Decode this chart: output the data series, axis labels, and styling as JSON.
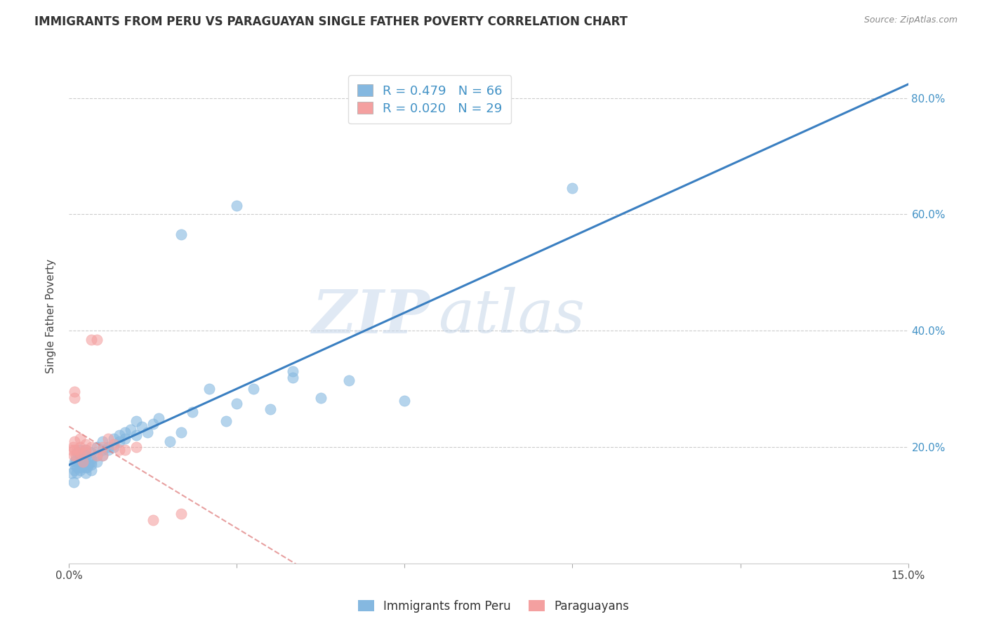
{
  "title": "IMMIGRANTS FROM PERU VS PARAGUAYAN SINGLE FATHER POVERTY CORRELATION CHART",
  "source": "Source: ZipAtlas.com",
  "ylabel": "Single Father Poverty",
  "xlim": [
    0.0,
    0.15
  ],
  "ylim": [
    0.0,
    0.85
  ],
  "xticks": [
    0.0,
    0.03,
    0.06,
    0.09,
    0.12,
    0.15
  ],
  "xticklabels": [
    "0.0%",
    "",
    "",
    "",
    "",
    "15.0%"
  ],
  "yticks_right": [
    0.0,
    0.2,
    0.4,
    0.6,
    0.8
  ],
  "yticklabels_right": [
    "",
    "20.0%",
    "40.0%",
    "60.0%",
    "80.0%"
  ],
  "legend_label1": "Immigrants from Peru",
  "legend_label2": "Paraguayans",
  "R1": 0.479,
  "N1": 66,
  "R2": 0.02,
  "N2": 29,
  "color_blue": "#85b8e0",
  "color_pink": "#f4a0a0",
  "color_blue_line": "#3a7fc1",
  "color_pink_line": "#e08080",
  "watermark_zip": "ZIP",
  "watermark_atlas": "atlas",
  "peru_x": [
    0.0005,
    0.0008,
    0.001,
    0.001,
    0.001,
    0.0012,
    0.0013,
    0.0015,
    0.0015,
    0.0018,
    0.002,
    0.002,
    0.002,
    0.002,
    0.0022,
    0.0025,
    0.0025,
    0.003,
    0.003,
    0.003,
    0.003,
    0.003,
    0.0032,
    0.0035,
    0.004,
    0.004,
    0.004,
    0.004,
    0.004,
    0.005,
    0.005,
    0.005,
    0.006,
    0.006,
    0.006,
    0.007,
    0.007,
    0.008,
    0.008,
    0.009,
    0.009,
    0.01,
    0.01,
    0.011,
    0.012,
    0.012,
    0.013,
    0.014,
    0.015,
    0.016,
    0.018,
    0.02,
    0.022,
    0.025,
    0.028,
    0.03,
    0.033,
    0.036,
    0.04,
    0.045,
    0.05,
    0.06,
    0.02,
    0.03,
    0.04,
    0.09
  ],
  "peru_y": [
    0.155,
    0.14,
    0.16,
    0.17,
    0.175,
    0.18,
    0.155,
    0.19,
    0.165,
    0.17,
    0.16,
    0.175,
    0.185,
    0.195,
    0.165,
    0.17,
    0.18,
    0.155,
    0.165,
    0.175,
    0.185,
    0.195,
    0.165,
    0.17,
    0.16,
    0.17,
    0.18,
    0.19,
    0.175,
    0.185,
    0.2,
    0.175,
    0.195,
    0.21,
    0.185,
    0.2,
    0.195,
    0.215,
    0.2,
    0.22,
    0.21,
    0.225,
    0.215,
    0.23,
    0.245,
    0.22,
    0.235,
    0.225,
    0.24,
    0.25,
    0.21,
    0.225,
    0.26,
    0.3,
    0.245,
    0.275,
    0.3,
    0.265,
    0.32,
    0.285,
    0.315,
    0.28,
    0.565,
    0.615,
    0.33,
    0.645
  ],
  "paraguay_x": [
    0.0005,
    0.0007,
    0.0008,
    0.001,
    0.001,
    0.001,
    0.001,
    0.0012,
    0.0015,
    0.002,
    0.002,
    0.002,
    0.0025,
    0.003,
    0.003,
    0.003,
    0.004,
    0.004,
    0.005,
    0.005,
    0.006,
    0.006,
    0.007,
    0.008,
    0.009,
    0.01,
    0.012,
    0.015,
    0.02
  ],
  "paraguay_y": [
    0.195,
    0.2,
    0.185,
    0.195,
    0.21,
    0.285,
    0.295,
    0.185,
    0.195,
    0.19,
    0.2,
    0.215,
    0.175,
    0.19,
    0.205,
    0.195,
    0.2,
    0.385,
    0.185,
    0.385,
    0.2,
    0.185,
    0.215,
    0.205,
    0.195,
    0.195,
    0.2,
    0.075,
    0.085
  ]
}
